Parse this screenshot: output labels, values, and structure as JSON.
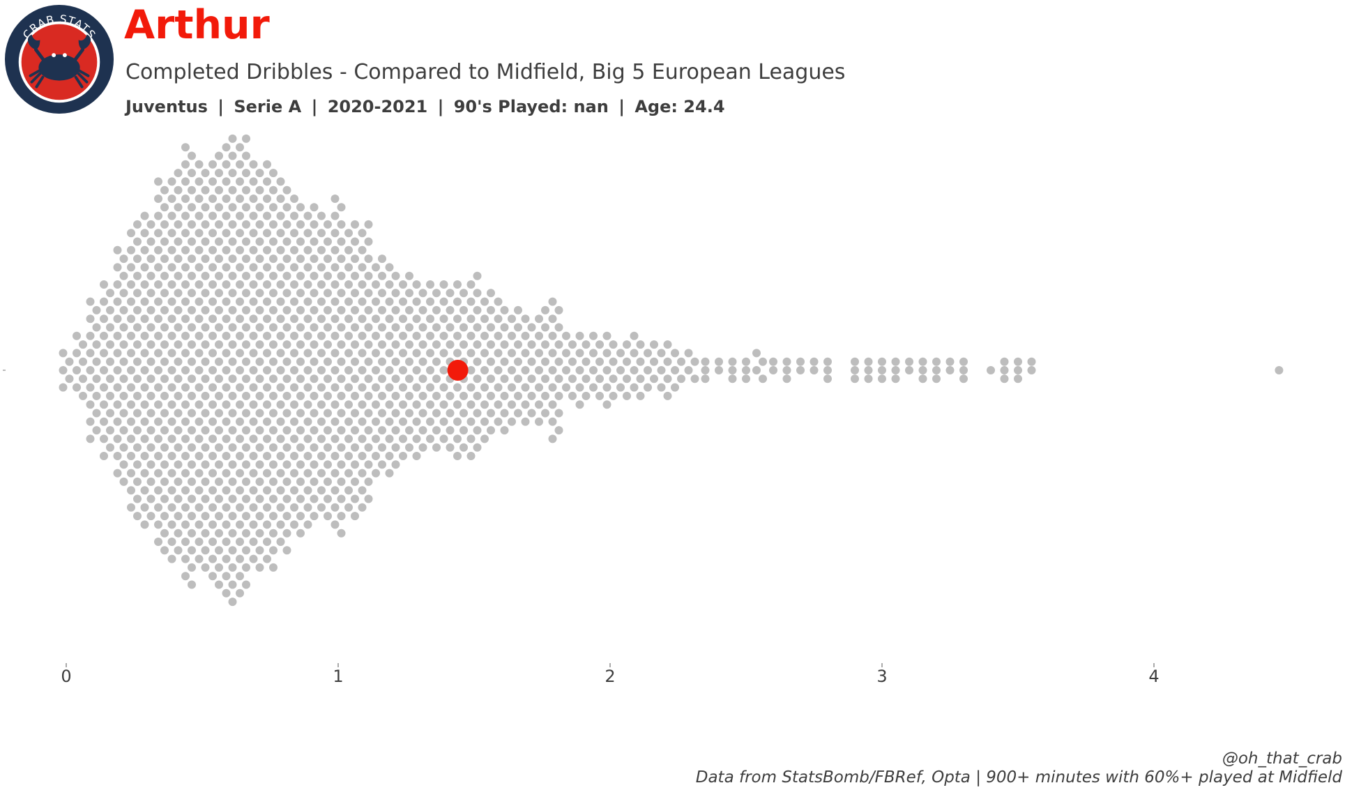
{
  "logo": {
    "text": "CRAB STATS",
    "ring_color": "#1e3250",
    "inner_color": "#d92a22",
    "crab_color": "#1e3250"
  },
  "header": {
    "player_name": "Arthur",
    "subtitle": "Completed Dribbles - Compared to Midfield, Big 5 European Leagues",
    "team": "Juventus",
    "league": "Serie A",
    "season": "2020-2021",
    "nineties_played": "90's Played: nan",
    "age": "Age: 24.4"
  },
  "footer": {
    "handle": "@oh_that_crab",
    "source": "Data from StatsBomb/FBRef, Opta | 900+ minutes with 60%+ played at Midfield"
  },
  "colors": {
    "highlight": "#f21a0a",
    "dots": "#bdbdbd",
    "text": "#3d3d3d"
  },
  "chart_data": {
    "type": "scatter",
    "style": "beeswarm",
    "metric": "Completed Dribbles",
    "xlim": [
      0,
      4.6
    ],
    "xticks": [
      0,
      1,
      2,
      3,
      4
    ],
    "grid": false,
    "legend": "none",
    "highlight": {
      "player": "Arthur",
      "value": 1.44
    },
    "bins": [
      {
        "x": 0.0,
        "count": 5
      },
      {
        "x": 0.05,
        "count": 8
      },
      {
        "x": 0.1,
        "count": 17
      },
      {
        "x": 0.15,
        "count": 21
      },
      {
        "x": 0.2,
        "count": 28
      },
      {
        "x": 0.25,
        "count": 35
      },
      {
        "x": 0.3,
        "count": 37
      },
      {
        "x": 0.35,
        "count": 44
      },
      {
        "x": 0.4,
        "count": 46
      },
      {
        "x": 0.45,
        "count": 52
      },
      {
        "x": 0.5,
        "count": 48
      },
      {
        "x": 0.55,
        "count": 51
      },
      {
        "x": 0.6,
        "count": 55
      },
      {
        "x": 0.65,
        "count": 54
      },
      {
        "x": 0.7,
        "count": 48
      },
      {
        "x": 0.75,
        "count": 48
      },
      {
        "x": 0.8,
        "count": 44
      },
      {
        "x": 0.85,
        "count": 40
      },
      {
        "x": 0.9,
        "count": 38
      },
      {
        "x": 0.95,
        "count": 36
      },
      {
        "x": 1.0,
        "count": 40
      },
      {
        "x": 1.05,
        "count": 35
      },
      {
        "x": 1.1,
        "count": 34
      },
      {
        "x": 1.15,
        "count": 26
      },
      {
        "x": 1.2,
        "count": 25
      },
      {
        "x": 1.25,
        "count": 22
      },
      {
        "x": 1.3,
        "count": 21
      },
      {
        "x": 1.35,
        "count": 20
      },
      {
        "x": 1.4,
        "count": 20
      },
      {
        "x": 1.45,
        "count": 21
      },
      {
        "x": 1.5,
        "count": 22
      },
      {
        "x": 1.55,
        "count": 18
      },
      {
        "x": 1.6,
        "count": 16
      },
      {
        "x": 1.65,
        "count": 14
      },
      {
        "x": 1.7,
        "count": 13
      },
      {
        "x": 1.75,
        "count": 14
      },
      {
        "x": 1.8,
        "count": 17
      },
      {
        "x": 1.85,
        "count": 8
      },
      {
        "x": 1.9,
        "count": 9
      },
      {
        "x": 1.95,
        "count": 8
      },
      {
        "x": 2.0,
        "count": 9
      },
      {
        "x": 2.05,
        "count": 7
      },
      {
        "x": 2.1,
        "count": 8
      },
      {
        "x": 2.15,
        "count": 6
      },
      {
        "x": 2.2,
        "count": 7
      },
      {
        "x": 2.25,
        "count": 5
      },
      {
        "x": 2.3,
        "count": 4
      },
      {
        "x": 2.35,
        "count": 3
      },
      {
        "x": 2.4,
        "count": 2
      },
      {
        "x": 2.45,
        "count": 3
      },
      {
        "x": 2.5,
        "count": 3
      },
      {
        "x": 2.55,
        "count": 4
      },
      {
        "x": 2.6,
        "count": 2
      },
      {
        "x": 2.65,
        "count": 3
      },
      {
        "x": 2.7,
        "count": 2
      },
      {
        "x": 2.75,
        "count": 2
      },
      {
        "x": 2.8,
        "count": 3
      },
      {
        "x": 2.9,
        "count": 3
      },
      {
        "x": 2.95,
        "count": 3
      },
      {
        "x": 3.0,
        "count": 3
      },
      {
        "x": 3.05,
        "count": 3
      },
      {
        "x": 3.1,
        "count": 2
      },
      {
        "x": 3.15,
        "count": 3
      },
      {
        "x": 3.2,
        "count": 3
      },
      {
        "x": 3.25,
        "count": 2
      },
      {
        "x": 3.3,
        "count": 3
      },
      {
        "x": 3.4,
        "count": 1
      },
      {
        "x": 3.45,
        "count": 3
      },
      {
        "x": 3.5,
        "count": 3
      },
      {
        "x": 3.55,
        "count": 2
      },
      {
        "x": 4.46,
        "count": 1
      }
    ]
  }
}
